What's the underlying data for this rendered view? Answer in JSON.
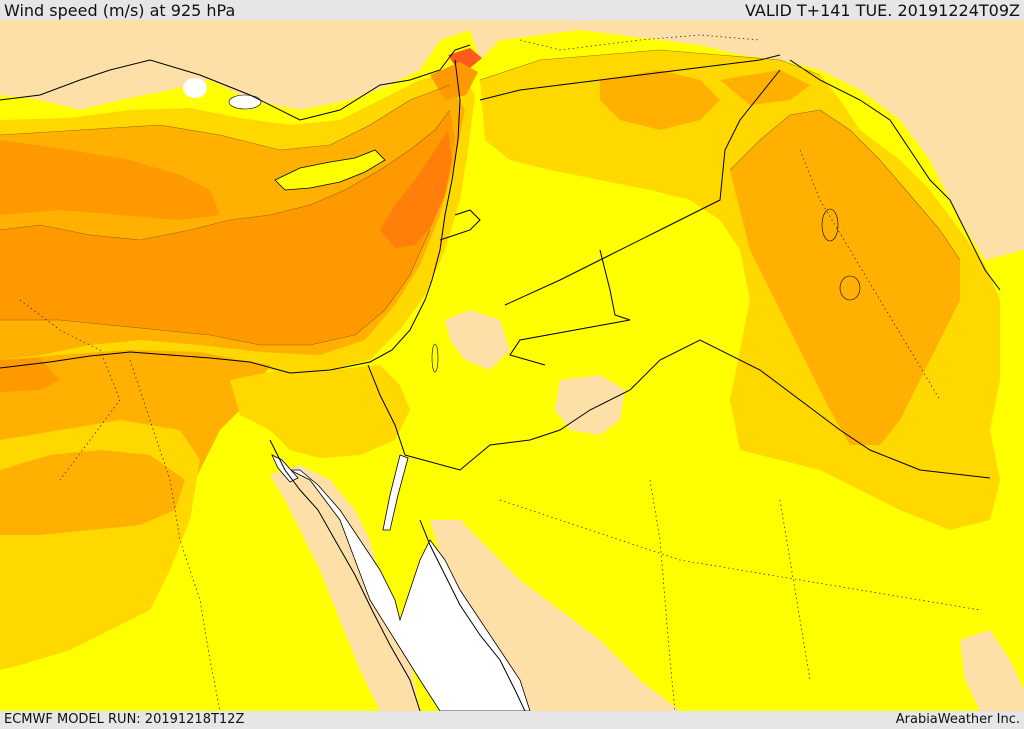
{
  "header": {
    "title": "Wind speed (m/s) at 925 hPa",
    "valid": "VALID T+141 TUE. 20191224T09Z"
  },
  "footer": {
    "model_run": "ECMWF MODEL RUN: 20191218T12Z",
    "credit": "ArabiaWeather Inc."
  },
  "map": {
    "colors": {
      "calm": "#ffffff",
      "light": "#fde0a8",
      "yellow": "#ffff00",
      "gold": "#ffd800",
      "amber": "#ffb000",
      "orange": "#ff9900",
      "dark_orange": "#ff7f0a",
      "red_orange": "#ff5a1e",
      "border": "#000000"
    }
  }
}
